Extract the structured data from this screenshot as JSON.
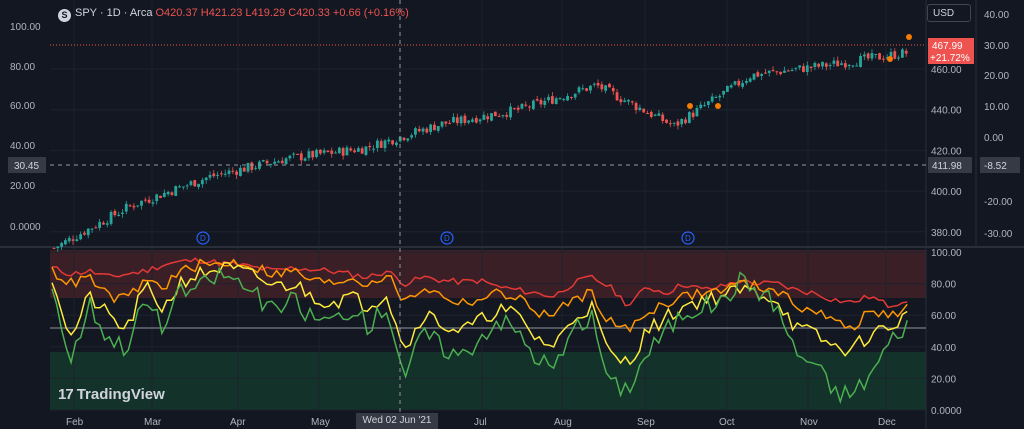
{
  "header": {
    "symbol_icon": "S",
    "title": "SPY · 1D · Arca",
    "open": "O420.37",
    "high": "H421.23",
    "low": "L419.29",
    "close": "C420.33",
    "change": "+0.66 (+0.16%)"
  },
  "currency_button": "USD",
  "watermark": "TradingView",
  "crosshair": {
    "date_label": "Wed 02 Jun '21",
    "left_label": "30.45",
    "price_label": "411.98",
    "right_label": "-8.52"
  },
  "last_price": {
    "value": "467.99",
    "change": "+21.72%"
  },
  "colors": {
    "background": "#131722",
    "up": "#26a69a",
    "down": "#ef5350",
    "accent": "#f57c00",
    "grid": "#1e222d"
  },
  "chart_data": [
    {
      "type": "candlestick",
      "title": "SPY · 1D · Arca",
      "x_tick_labels": [
        "Feb",
        "Mar",
        "Apr",
        "May",
        "Jun",
        "Jul",
        "Aug",
        "Sep",
        "Oct",
        "Nov",
        "Dec"
      ],
      "price_axis": {
        "ticks": [
          "380.00",
          "400.00",
          "420.00",
          "440.00",
          "460.00"
        ],
        "ylim": [
          374,
          490
        ]
      },
      "percent_axis": {
        "ticks": [
          "-30.00",
          "-20.00",
          "-10.00",
          "0.00",
          "10.00",
          "20.00",
          "30.00",
          "40.00"
        ]
      },
      "left_axis": {
        "ticks": [
          "0.0000",
          "20.00",
          "40.00",
          "60.00",
          "80.00",
          "100.00"
        ]
      },
      "close_path": [
        {
          "x": "Feb",
          "y": 372
        },
        {
          "x": "Mar",
          "y": 393
        },
        {
          "x": "Apr",
          "y": 407
        },
        {
          "x": "May",
          "y": 416
        },
        {
          "x": "Jun",
          "y": 421
        },
        {
          "x": "Jul",
          "y": 433
        },
        {
          "x": "Aug",
          "y": 440
        },
        {
          "x": "Sep",
          "y": 452
        },
        {
          "x": "Oct",
          "y": 432
        },
        {
          "x": "Nov",
          "y": 457
        },
        {
          "x": "Dec",
          "y": 462
        },
        {
          "x": "end",
          "y": 468
        }
      ],
      "dividend_markers": [
        "Mar",
        "Jun",
        "Sep"
      ],
      "last_value": 467.99
    },
    {
      "type": "line",
      "ylim": [
        0,
        100
      ],
      "y_ticks": [
        "0.0000",
        "20.00",
        "40.00",
        "60.00",
        "80.00",
        "100.00"
      ],
      "reference_line": 50,
      "series": [
        {
          "color": "#e53935",
          "values": [
            90,
            86,
            88,
            84,
            86,
            88,
            92,
            94,
            95,
            93,
            92,
            90,
            88,
            90,
            89,
            88,
            86,
            84,
            88,
            80,
            84,
            82,
            81,
            82,
            78,
            76,
            74,
            72,
            80,
            84,
            78,
            66,
            78,
            74,
            80,
            76,
            78,
            82,
            80,
            80,
            76,
            74,
            70,
            68,
            72,
            66,
            70
          ]
        },
        {
          "color": "#ff9800",
          "values": [
            88,
            80,
            84,
            72,
            70,
            82,
            78,
            88,
            92,
            92,
            94,
            90,
            86,
            88,
            82,
            80,
            84,
            80,
            86,
            68,
            78,
            72,
            68,
            70,
            74,
            72,
            62,
            60,
            70,
            74,
            56,
            50,
            62,
            68,
            72,
            74,
            76,
            80,
            78,
            76,
            66,
            64,
            56,
            52,
            62,
            60,
            64
          ]
        },
        {
          "color": "#ffeb3b",
          "values": [
            85,
            45,
            72,
            60,
            50,
            78,
            64,
            82,
            86,
            90,
            88,
            84,
            78,
            80,
            72,
            68,
            72,
            66,
            74,
            38,
            62,
            54,
            50,
            56,
            64,
            60,
            46,
            40,
            58,
            66,
            34,
            30,
            50,
            58,
            66,
            70,
            72,
            76,
            74,
            70,
            52,
            48,
            40,
            38,
            48,
            52,
            60
          ]
        },
        {
          "color": "#4caf50",
          "values": [
            80,
            30,
            68,
            46,
            40,
            70,
            52,
            76,
            78,
            86,
            82,
            72,
            62,
            70,
            58,
            56,
            64,
            54,
            66,
            22,
            50,
            40,
            34,
            46,
            58,
            50,
            34,
            26,
            48,
            60,
            16,
            14,
            36,
            50,
            62,
            66,
            68,
            82,
            76,
            66,
            36,
            30,
            12,
            10,
            22,
            42,
            56
          ]
        }
      ],
      "crosshair_value": 30.45
    }
  ]
}
